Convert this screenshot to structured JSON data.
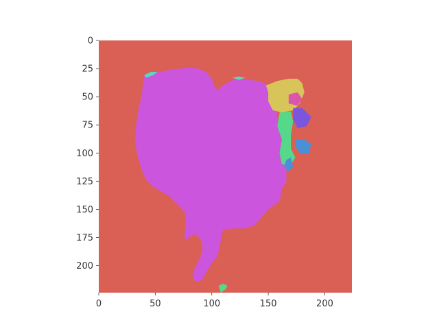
{
  "chart_data": {
    "type": "heatmap",
    "title": "",
    "xlabel": "",
    "ylabel": "",
    "xlim": [
      0,
      224
    ],
    "ylim": [
      224,
      0
    ],
    "x_ticks": [
      0,
      50,
      100,
      150,
      200
    ],
    "y_ticks": [
      0,
      25,
      50,
      75,
      100,
      125,
      150,
      175,
      200
    ],
    "grid": false,
    "colors": {
      "background": "#da5f55",
      "main_segment": "#cc55dd",
      "yellow": "#d8c55a",
      "green": "#55d88a",
      "blue": "#4a90d9",
      "indigo": "#7a55dd",
      "pink": "#dd55aa",
      "teal": "#5ad8c0"
    },
    "segments": [
      {
        "label_color": "main_segment",
        "outline": [
          [
            40,
            32
          ],
          [
            48,
            29
          ],
          [
            55,
            28
          ],
          [
            64,
            26
          ],
          [
            72,
            25
          ],
          [
            80,
            24
          ],
          [
            88,
            25
          ],
          [
            95,
            28
          ],
          [
            100,
            34
          ],
          [
            102,
            40
          ],
          [
            105,
            44
          ],
          [
            110,
            40
          ],
          [
            116,
            36
          ],
          [
            124,
            34
          ],
          [
            134,
            35
          ],
          [
            144,
            37
          ],
          [
            150,
            40
          ],
          [
            154,
            48
          ],
          [
            156,
            58
          ],
          [
            158,
            68
          ],
          [
            160,
            80
          ],
          [
            162,
            92
          ],
          [
            164,
            104
          ],
          [
            166,
            114
          ],
          [
            166,
            125
          ],
          [
            162,
            132
          ],
          [
            160,
            143
          ],
          [
            150,
            150
          ],
          [
            144,
            157
          ],
          [
            138,
            164
          ],
          [
            130,
            167
          ],
          [
            118,
            167
          ],
          [
            110,
            168
          ],
          [
            108,
            178
          ],
          [
            105,
            192
          ],
          [
            100,
            198
          ],
          [
            95,
            206
          ],
          [
            92,
            212
          ],
          [
            88,
            214
          ],
          [
            84,
            213
          ],
          [
            83,
            208
          ],
          [
            86,
            200
          ],
          [
            90,
            192
          ],
          [
            92,
            184
          ],
          [
            90,
            176
          ],
          [
            85,
            172
          ],
          [
            80,
            175
          ],
          [
            76,
            178
          ],
          [
            76,
            172
          ],
          [
            77,
            160
          ],
          [
            76,
            152
          ],
          [
            70,
            146
          ],
          [
            62,
            138
          ],
          [
            55,
            134
          ],
          [
            48,
            130
          ],
          [
            42,
            124
          ],
          [
            38,
            115
          ],
          [
            35,
            105
          ],
          [
            32,
            90
          ],
          [
            33,
            76
          ],
          [
            35,
            62
          ],
          [
            38,
            48
          ]
        ]
      },
      {
        "label_color": "yellow",
        "outline": [
          [
            148,
            40
          ],
          [
            158,
            36
          ],
          [
            168,
            34
          ],
          [
            176,
            34
          ],
          [
            180,
            38
          ],
          [
            182,
            46
          ],
          [
            178,
            56
          ],
          [
            172,
            62
          ],
          [
            162,
            64
          ],
          [
            154,
            62
          ],
          [
            150,
            54
          ],
          [
            150,
            46
          ]
        ]
      },
      {
        "label_color": "green",
        "outline": [
          [
            160,
            64
          ],
          [
            170,
            63
          ],
          [
            172,
            72
          ],
          [
            170,
            84
          ],
          [
            170,
            96
          ],
          [
            174,
            104
          ],
          [
            170,
            110
          ],
          [
            162,
            110
          ],
          [
            160,
            100
          ],
          [
            162,
            88
          ],
          [
            158,
            76
          ]
        ]
      },
      {
        "label_color": "green",
        "outline": [
          [
            108,
            224
          ],
          [
            112,
            221
          ],
          [
            114,
            218
          ],
          [
            110,
            216
          ],
          [
            106,
            218
          ]
        ]
      },
      {
        "label_color": "pink",
        "outline": [
          [
            168,
            48
          ],
          [
            176,
            46
          ],
          [
            180,
            52
          ],
          [
            176,
            58
          ],
          [
            168,
            56
          ]
        ]
      },
      {
        "label_color": "indigo",
        "outline": [
          [
            172,
            60
          ],
          [
            180,
            60
          ],
          [
            188,
            68
          ],
          [
            184,
            76
          ],
          [
            176,
            78
          ],
          [
            172,
            70
          ]
        ]
      },
      {
        "label_color": "blue",
        "outline": [
          [
            174,
            88
          ],
          [
            182,
            88
          ],
          [
            188,
            92
          ],
          [
            186,
            100
          ],
          [
            178,
            100
          ],
          [
            174,
            94
          ]
        ]
      },
      {
        "label_color": "blue",
        "outline": [
          [
            166,
            106
          ],
          [
            170,
            104
          ],
          [
            172,
            112
          ],
          [
            168,
            116
          ],
          [
            164,
            112
          ]
        ]
      },
      {
        "label_color": "teal",
        "outline": [
          [
            40,
            31
          ],
          [
            46,
            28
          ],
          [
            52,
            28
          ],
          [
            48,
            31
          ],
          [
            42,
            33
          ]
        ]
      },
      {
        "label_color": "teal",
        "outline": [
          [
            118,
            33
          ],
          [
            124,
            32
          ],
          [
            130,
            33
          ],
          [
            124,
            35
          ]
        ]
      }
    ]
  }
}
